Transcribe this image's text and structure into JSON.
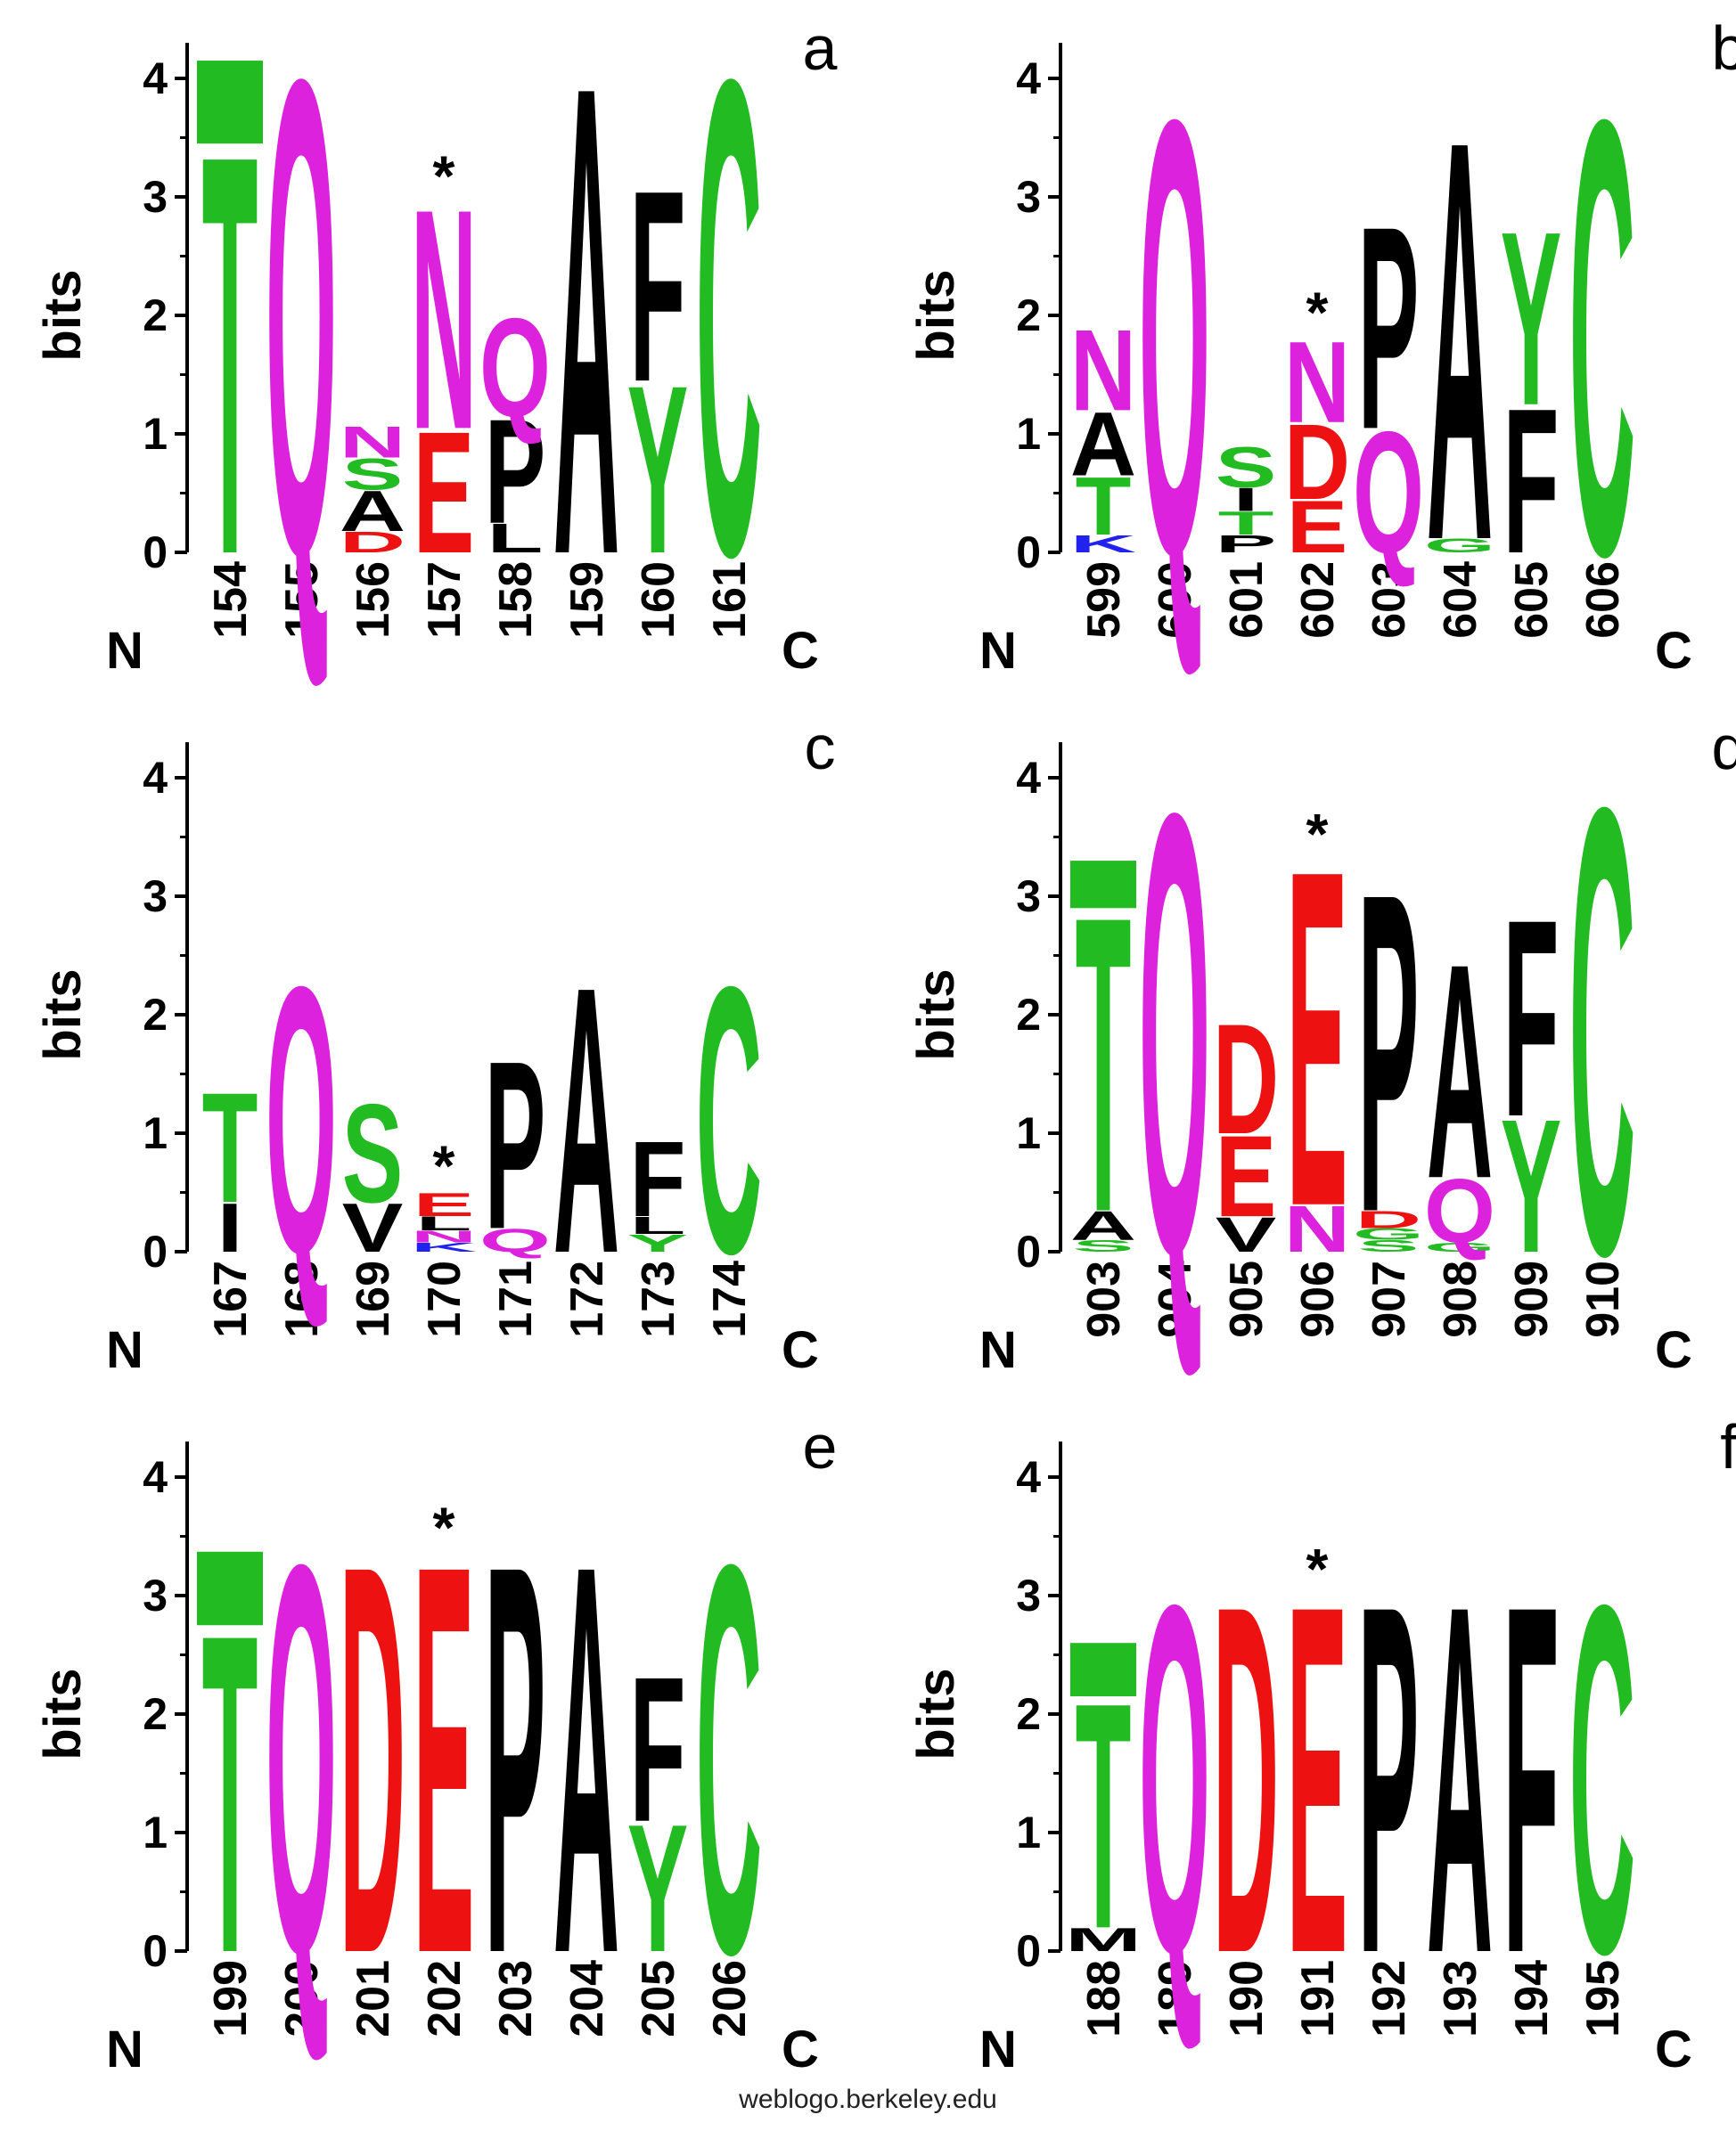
{
  "colors": {
    "T": "#22bb22",
    "S": "#22bb22",
    "G": "#22bb22",
    "C": "#22bb22",
    "Y": "#22bb22",
    "Q": "#dd22dd",
    "N": "#dd22dd",
    "E": "#ee1111",
    "D": "#ee1111",
    "A": "#000000",
    "P": "#000000",
    "F": "#000000",
    "V": "#000000",
    "L": "#000000",
    "I": "#000000",
    "M": "#000000",
    "K": "#2222ee"
  },
  "footer": "weblogo.berkeley.edu",
  "chart_data": [
    {
      "type": "sequence-logo",
      "panel": "a",
      "ylabel": "bits",
      "ylim": [
        0,
        4
      ],
      "yticks": [
        "0",
        "1",
        "2",
        "3",
        "4"
      ],
      "start": "N",
      "end": "C",
      "marker_position": "157",
      "positions": [
        {
          "label": "154",
          "stack": [
            {
              "letter": "T",
              "bits": 3.45
            },
            {
              "letter": "T",
              "bits": 0.7,
              "cap": true
            }
          ]
        },
        {
          "label": "155",
          "stack": [
            {
              "letter": "Q",
              "bits": 4.1
            }
          ]
        },
        {
          "label": "156",
          "stack": [
            {
              "letter": "D",
              "bits": 0.18
            },
            {
              "letter": "A",
              "bits": 0.35
            },
            {
              "letter": "S",
              "bits": 0.27
            },
            {
              "letter": "N",
              "bits": 0.27
            }
          ]
        },
        {
          "label": "157",
          "stack": [
            {
              "letter": "E",
              "bits": 1.05
            },
            {
              "letter": "N",
              "bits": 1.9
            }
          ]
        },
        {
          "label": "158",
          "stack": [
            {
              "letter": "L",
              "bits": 0.25
            },
            {
              "letter": "P",
              "bits": 0.9
            },
            {
              "letter": "Q",
              "bits": 0.85
            }
          ]
        },
        {
          "label": "159",
          "stack": [
            {
              "letter": "A",
              "bits": 4.05
            }
          ]
        },
        {
          "label": "160",
          "stack": [
            {
              "letter": "Y",
              "bits": 1.45
            },
            {
              "letter": "F",
              "bits": 1.65
            }
          ]
        },
        {
          "label": "161",
          "stack": [
            {
              "letter": "C",
              "bits": 4.1
            }
          ]
        }
      ]
    },
    {
      "type": "sequence-logo",
      "panel": "b",
      "ylabel": "bits",
      "ylim": [
        0,
        4
      ],
      "yticks": [
        "0",
        "1",
        "2",
        "3",
        "4"
      ],
      "start": "N",
      "end": "C",
      "marker_position": "602",
      "positions": [
        {
          "label": "599",
          "stack": [
            {
              "letter": "K",
              "bits": 0.15
            },
            {
              "letter": "T",
              "bits": 0.5
            },
            {
              "letter": "A",
              "bits": 0.55
            },
            {
              "letter": "N",
              "bits": 0.7
            }
          ]
        },
        {
          "label": "600",
          "stack": [
            {
              "letter": "Q",
              "bits": 3.75
            }
          ]
        },
        {
          "label": "601",
          "stack": [
            {
              "letter": "P",
              "bits": 0.15
            },
            {
              "letter": "T",
              "bits": 0.2
            },
            {
              "letter": "I",
              "bits": 0.2
            },
            {
              "letter": "S",
              "bits": 0.35
            }
          ]
        },
        {
          "label": "602",
          "stack": [
            {
              "letter": "E",
              "bits": 0.45
            },
            {
              "letter": "D",
              "bits": 0.65
            },
            {
              "letter": "N",
              "bits": 0.7
            }
          ]
        },
        {
          "label": "603",
          "stack": [
            {
              "letter": "Q",
              "bits": 1.05
            },
            {
              "letter": "P",
              "bits": 1.75
            }
          ]
        },
        {
          "label": "604",
          "stack": [
            {
              "letter": "G",
              "bits": 0.12
            },
            {
              "letter": "A",
              "bits": 3.45
            }
          ]
        },
        {
          "label": "605",
          "stack": [
            {
              "letter": "F",
              "bits": 1.25
            },
            {
              "letter": "Y",
              "bits": 1.5
            }
          ]
        },
        {
          "label": "606",
          "stack": [
            {
              "letter": "C",
              "bits": 3.75
            }
          ]
        }
      ]
    },
    {
      "type": "sequence-logo",
      "panel": "c",
      "ylabel": "bits",
      "ylim": [
        0,
        4
      ],
      "yticks": [
        "0",
        "1",
        "2",
        "3",
        "4"
      ],
      "start": "N",
      "end": "C",
      "marker_position": "170",
      "positions": [
        {
          "label": "167",
          "stack": [
            {
              "letter": "I",
              "bits": 0.42
            },
            {
              "letter": "T",
              "bits": 0.95
            }
          ]
        },
        {
          "label": "168",
          "stack": [
            {
              "letter": "Q",
              "bits": 2.3
            }
          ]
        },
        {
          "label": "169",
          "stack": [
            {
              "letter": "V",
              "bits": 0.42
            },
            {
              "letter": "S",
              "bits": 0.85
            }
          ]
        },
        {
          "label": "170",
          "stack": [
            {
              "letter": "K",
              "bits": 0.08
            },
            {
              "letter": "N",
              "bits": 0.1
            },
            {
              "letter": "L",
              "bits": 0.12
            },
            {
              "letter": "E",
              "bits": 0.2
            }
          ]
        },
        {
          "label": "171",
          "stack": [
            {
              "letter": "Q",
              "bits": 0.2
            },
            {
              "letter": "P",
              "bits": 1.45
            }
          ]
        },
        {
          "label": "172",
          "stack": [
            {
              "letter": "A",
              "bits": 2.3
            }
          ]
        },
        {
          "label": "173",
          "stack": [
            {
              "letter": "Y",
              "bits": 0.15
            },
            {
              "letter": "L",
              "bits": 0.15
            },
            {
              "letter": "F",
              "bits": 0.65
            }
          ]
        },
        {
          "label": "174",
          "stack": [
            {
              "letter": "C",
              "bits": 2.3
            }
          ]
        }
      ]
    },
    {
      "type": "sequence-logo",
      "panel": "d",
      "ylabel": "bits",
      "ylim": [
        0,
        4
      ],
      "yticks": [
        "0",
        "1",
        "2",
        "3",
        "4"
      ],
      "start": "N",
      "end": "C",
      "marker_position": "906",
      "positions": [
        {
          "label": "903",
          "stack": [
            {
              "letter": "S",
              "bits": 0.1
            },
            {
              "letter": "A",
              "bits": 0.25
            },
            {
              "letter": "T",
              "bits": 2.55
            },
            {
              "letter": "T",
              "bits": 0.4,
              "cap": true
            }
          ]
        },
        {
          "label": "904",
          "stack": [
            {
              "letter": "Q",
              "bits": 3.8
            }
          ]
        },
        {
          "label": "905",
          "stack": [
            {
              "letter": "V",
              "bits": 0.3
            },
            {
              "letter": "E",
              "bits": 0.7
            },
            {
              "letter": "D",
              "bits": 0.95
            }
          ]
        },
        {
          "label": "906",
          "stack": [
            {
              "letter": "N",
              "bits": 0.4
            },
            {
              "letter": "E",
              "bits": 2.9
            }
          ]
        },
        {
          "label": "907",
          "stack": [
            {
              "letter": "S",
              "bits": 0.1
            },
            {
              "letter": "G",
              "bits": 0.1
            },
            {
              "letter": "D",
              "bits": 0.15
            },
            {
              "letter": "P",
              "bits": 2.75
            }
          ]
        },
        {
          "label": "908",
          "stack": [
            {
              "letter": "G",
              "bits": 0.08
            },
            {
              "letter": "Q",
              "bits": 0.55
            },
            {
              "letter": "A",
              "bits": 1.85
            }
          ]
        },
        {
          "label": "909",
          "stack": [
            {
              "letter": "Y",
              "bits": 1.15
            },
            {
              "letter": "F",
              "bits": 1.7
            }
          ]
        },
        {
          "label": "910",
          "stack": [
            {
              "letter": "C",
              "bits": 3.85
            }
          ]
        }
      ]
    },
    {
      "type": "sequence-logo",
      "panel": "e",
      "ylabel": "bits",
      "ylim": [
        0,
        4
      ],
      "yticks": [
        "0",
        "1",
        "2",
        "3",
        "4"
      ],
      "start": "N",
      "end": "C",
      "marker_position": "202",
      "positions": [
        {
          "label": "199",
          "stack": [
            {
              "letter": "T",
              "bits": 2.75
            },
            {
              "letter": "T",
              "bits": 0.62,
              "cap": true
            }
          ]
        },
        {
          "label": "200",
          "stack": [
            {
              "letter": "Q",
              "bits": 3.35
            }
          ]
        },
        {
          "label": "201",
          "stack": [
            {
              "letter": "D",
              "bits": 3.35
            }
          ]
        },
        {
          "label": "202",
          "stack": [
            {
              "letter": "E",
              "bits": 3.35
            }
          ]
        },
        {
          "label": "203",
          "stack": [
            {
              "letter": "P",
              "bits": 3.35
            }
          ]
        },
        {
          "label": "204",
          "stack": [
            {
              "letter": "A",
              "bits": 3.35
            }
          ]
        },
        {
          "label": "205",
          "stack": [
            {
              "letter": "Y",
              "bits": 1.1
            },
            {
              "letter": "F",
              "bits": 1.25
            }
          ]
        },
        {
          "label": "206",
          "stack": [
            {
              "letter": "C",
              "bits": 3.35
            }
          ]
        }
      ]
    },
    {
      "type": "sequence-logo",
      "panel": "f",
      "ylabel": "bits",
      "ylim": [
        0,
        4
      ],
      "yticks": [
        "0",
        "1",
        "2",
        "3",
        "4"
      ],
      "start": "N",
      "end": "C",
      "marker_position": "191",
      "positions": [
        {
          "label": "188",
          "stack": [
            {
              "letter": "M",
              "bits": 0.2
            },
            {
              "letter": "T",
              "bits": 1.95
            },
            {
              "letter": "T",
              "bits": 0.45,
              "cap": true
            }
          ]
        },
        {
          "label": "189",
          "stack": [
            {
              "letter": "Q",
              "bits": 3.0
            }
          ]
        },
        {
          "label": "190",
          "stack": [
            {
              "letter": "D",
              "bits": 3.0
            }
          ]
        },
        {
          "label": "191",
          "stack": [
            {
              "letter": "E",
              "bits": 3.0
            }
          ]
        },
        {
          "label": "192",
          "stack": [
            {
              "letter": "P",
              "bits": 3.0
            }
          ]
        },
        {
          "label": "193",
          "stack": [
            {
              "letter": "A",
              "bits": 3.0
            }
          ]
        },
        {
          "label": "194",
          "stack": [
            {
              "letter": "F",
              "bits": 3.0
            }
          ]
        },
        {
          "label": "195",
          "stack": [
            {
              "letter": "C",
              "bits": 3.0
            }
          ]
        }
      ]
    }
  ]
}
